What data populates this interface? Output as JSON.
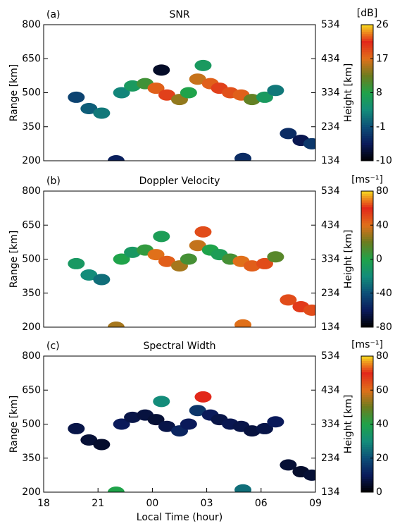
{
  "chart_data": [
    {
      "type": "heatmap",
      "label": "(a)",
      "title": "SNR",
      "xlim": [
        18,
        33
      ],
      "ylim": [
        200,
        800
      ],
      "yticks": [
        200,
        350,
        500,
        650,
        800
      ],
      "y2lim": [
        134,
        534
      ],
      "y2ticks": [
        134,
        234,
        334,
        434,
        534
      ],
      "ylabel": "Range [km]",
      "y2label": "Height [km]",
      "colorbar": {
        "label": "[dB]",
        "lim": [
          -10,
          26
        ],
        "ticks": [
          -10,
          -1,
          8,
          17,
          26
        ]
      },
      "colorscale": [
        "#000000",
        "#0a1a5a",
        "#0d4f78",
        "#138c7a",
        "#1fa34a",
        "#6b7d1f",
        "#e0701a",
        "#e2281a",
        "#f6d820"
      ],
      "x": [
        19.8,
        20.5,
        21.2,
        22.3,
        22.9,
        23.6,
        24.2,
        24.8,
        25.5,
        26.0,
        26.5,
        26.8,
        27.2,
        27.7,
        28.3,
        28.9,
        29.5,
        30.2,
        30.8,
        31.5,
        32.2,
        32.8,
        24.5,
        22.0,
        29.0
      ],
      "y": [
        480,
        430,
        410,
        500,
        530,
        540,
        520,
        490,
        470,
        500,
        560,
        620,
        540,
        520,
        500,
        490,
        470,
        480,
        510,
        320,
        290,
        275,
        600,
        200,
        210
      ],
      "values": [
        -2,
        0,
        2,
        3,
        6,
        10,
        18,
        20,
        14,
        8,
        16,
        6,
        18,
        20,
        19,
        18,
        12,
        6,
        2,
        -4,
        -6,
        -3,
        -8,
        -5,
        -4
      ]
    },
    {
      "type": "heatmap",
      "label": "(b)",
      "title": "Doppler Velocity",
      "xlim": [
        18,
        33
      ],
      "ylim": [
        200,
        800
      ],
      "yticks": [
        200,
        350,
        500,
        650,
        800
      ],
      "y2lim": [
        134,
        534
      ],
      "y2ticks": [
        134,
        234,
        334,
        434,
        534
      ],
      "ylabel": "Range [km]",
      "y2label": "Height [km]",
      "colorbar": {
        "label": "[ms⁻¹]",
        "lim": [
          -80,
          80
        ],
        "ticks": [
          -80,
          -40,
          0,
          40,
          80
        ]
      },
      "colorscale": [
        "#000000",
        "#0a1a5a",
        "#0d4f78",
        "#138c7a",
        "#1fa34a",
        "#6b7d1f",
        "#e0701a",
        "#e2281a",
        "#f6d820"
      ],
      "x": [
        19.8,
        20.5,
        21.2,
        22.3,
        22.9,
        23.6,
        24.2,
        24.8,
        25.5,
        26.0,
        26.5,
        26.8,
        27.2,
        27.7,
        28.3,
        28.9,
        29.5,
        30.2,
        30.8,
        31.5,
        32.2,
        32.8,
        24.5,
        22.0,
        29.0
      ],
      "y": [
        480,
        430,
        410,
        500,
        530,
        540,
        520,
        490,
        470,
        500,
        560,
        620,
        540,
        520,
        500,
        490,
        470,
        480,
        510,
        320,
        290,
        275,
        600,
        200,
        210
      ],
      "values": [
        -10,
        -20,
        -30,
        0,
        -10,
        5,
        40,
        45,
        30,
        10,
        35,
        50,
        0,
        -5,
        10,
        40,
        45,
        50,
        15,
        50,
        55,
        50,
        -5,
        30,
        40
      ]
    },
    {
      "type": "heatmap",
      "label": "(c)",
      "title": "Spectral Width",
      "xlim": [
        18,
        33
      ],
      "xticks": [
        18,
        21,
        {
          "value": 24,
          "label": "00"
        },
        {
          "value": 27,
          "label": "03"
        },
        {
          "value": 30,
          "label": "06"
        },
        {
          "value": 33,
          "label": "09"
        }
      ],
      "xlabel": "Local Time (hour)",
      "ylim": [
        200,
        800
      ],
      "yticks": [
        200,
        350,
        500,
        650,
        800
      ],
      "y2lim": [
        134,
        534
      ],
      "y2ticks": [
        134,
        234,
        334,
        434,
        534
      ],
      "ylabel": "Range [km]",
      "y2label": "Height [km]",
      "colorbar": {
        "label": "[ms⁻¹]",
        "lim": [
          0,
          80
        ],
        "ticks": [
          0,
          20,
          40,
          60,
          80
        ]
      },
      "colorscale": [
        "#000000",
        "#0a1a5a",
        "#0d4f78",
        "#138c7a",
        "#1fa34a",
        "#6b7d1f",
        "#e0701a",
        "#e2281a",
        "#f6d820"
      ],
      "x": [
        19.8,
        20.5,
        21.2,
        22.3,
        22.9,
        23.6,
        24.2,
        24.8,
        25.5,
        26.0,
        26.5,
        26.8,
        27.2,
        27.7,
        28.3,
        28.9,
        29.5,
        30.2,
        30.8,
        31.5,
        32.2,
        32.8,
        24.5,
        22.0,
        29.0
      ],
      "y": [
        480,
        430,
        410,
        500,
        530,
        540,
        520,
        490,
        470,
        500,
        560,
        620,
        540,
        520,
        500,
        490,
        470,
        480,
        510,
        320,
        290,
        275,
        600,
        200,
        210
      ],
      "values": [
        8,
        6,
        5,
        10,
        8,
        7,
        6,
        8,
        12,
        10,
        15,
        70,
        10,
        8,
        9,
        8,
        7,
        8,
        10,
        6,
        5,
        6,
        30,
        40,
        25
      ]
    }
  ]
}
